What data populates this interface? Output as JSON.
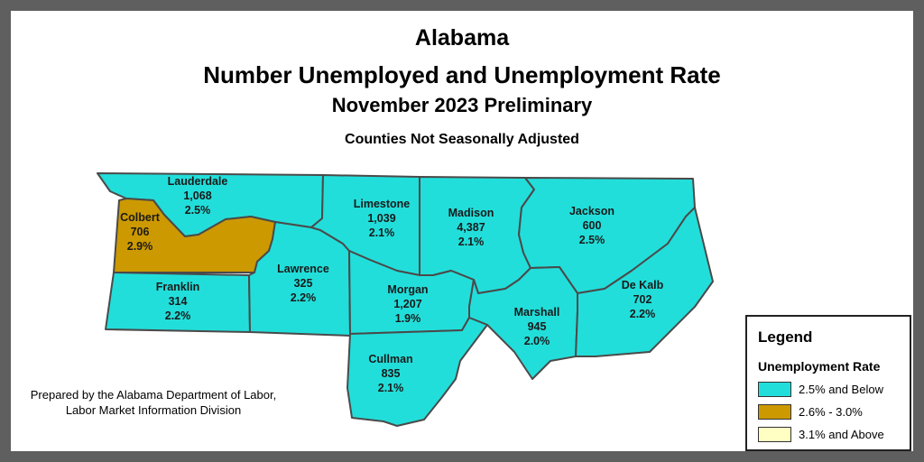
{
  "title": {
    "line1": "Alabama",
    "line2": "Number Unemployed and Unemployment Rate",
    "line3": "November 2023 Preliminary",
    "line4": "Counties Not Seasonally Adjusted"
  },
  "colors": {
    "low": "#22DEDA",
    "mid": "#CC9900",
    "high": "#FFFFC4",
    "border": "#4a4a4a"
  },
  "counties": [
    {
      "name": "Lauderdale",
      "unemployed": "1,068",
      "rate": "2.5%",
      "category": "low"
    },
    {
      "name": "Colbert",
      "unemployed": "706",
      "rate": "2.9%",
      "category": "mid"
    },
    {
      "name": "Franklin",
      "unemployed": "314",
      "rate": "2.2%",
      "category": "low"
    },
    {
      "name": "Lawrence",
      "unemployed": "325",
      "rate": "2.2%",
      "category": "low"
    },
    {
      "name": "Limestone",
      "unemployed": "1,039",
      "rate": "2.1%",
      "category": "low"
    },
    {
      "name": "Madison",
      "unemployed": "4,387",
      "rate": "2.1%",
      "category": "low"
    },
    {
      "name": "Jackson",
      "unemployed": "600",
      "rate": "2.5%",
      "category": "low"
    },
    {
      "name": "Morgan",
      "unemployed": "1,207",
      "rate": "1.9%",
      "category": "low"
    },
    {
      "name": "Marshall",
      "unemployed": "945",
      "rate": "2.0%",
      "category": "low"
    },
    {
      "name": "De Kalb",
      "unemployed": "702",
      "rate": "2.2%",
      "category": "low"
    },
    {
      "name": "Cullman",
      "unemployed": "835",
      "rate": "2.1%",
      "category": "low"
    }
  ],
  "credit": {
    "line1": "Prepared by the Alabama Department of Labor,",
    "line2": "Labor Market Information Division"
  },
  "legend": {
    "title": "Legend",
    "subtitle": "Unemployment Rate",
    "items": [
      {
        "label": "2.5% and Below",
        "category": "low"
      },
      {
        "label": "2.6% - 3.0%",
        "category": "mid"
      },
      {
        "label": "3.1% and Above",
        "category": "high"
      }
    ]
  }
}
